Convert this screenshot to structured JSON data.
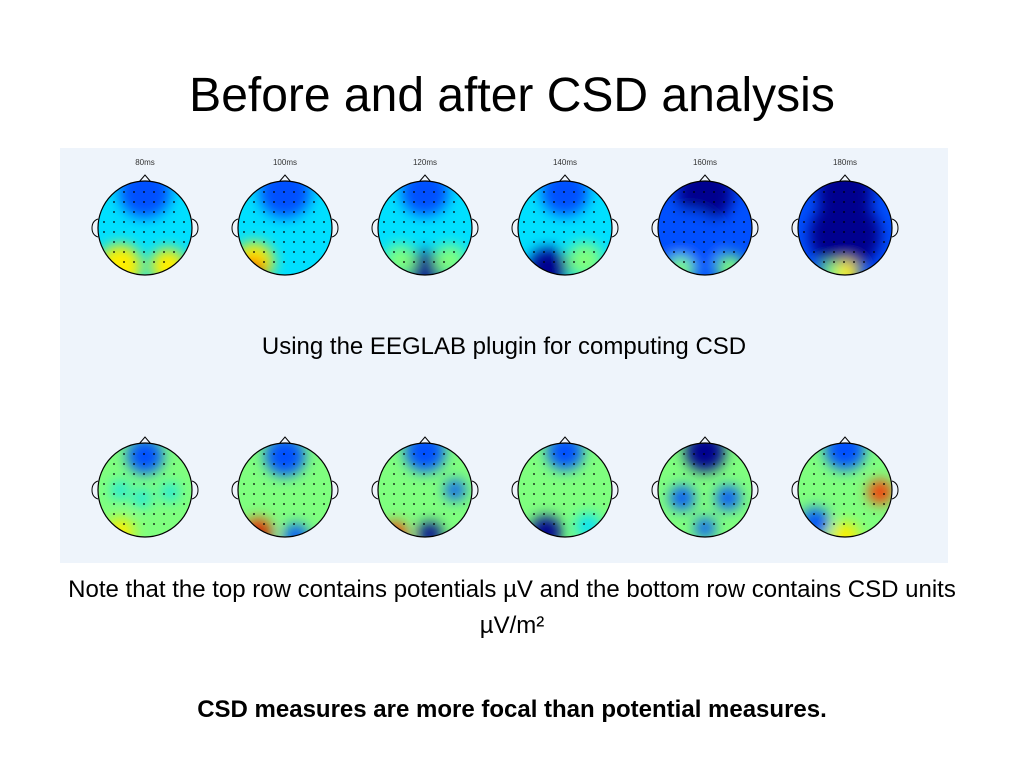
{
  "slide": {
    "title": "Before and after CSD analysis",
    "caption": "Using the EEGLAB plugin for computing CSD",
    "note": "Note that the top row contains potentials µV and the bottom row contains CSD units µV/m²",
    "conclusion": "CSD measures are more focal than potential measures."
  },
  "figure": {
    "time_labels": [
      "80ms",
      "100ms",
      "120ms",
      "140ms",
      "160ms",
      "180ms"
    ],
    "colormap": [
      "#00008f",
      "#0050ff",
      "#00dfff",
      "#7fff7f",
      "#ffef00",
      "#ff3000",
      "#800000"
    ],
    "background_color": "#eef4fb",
    "rows": [
      "potential",
      "csd"
    ]
  }
}
